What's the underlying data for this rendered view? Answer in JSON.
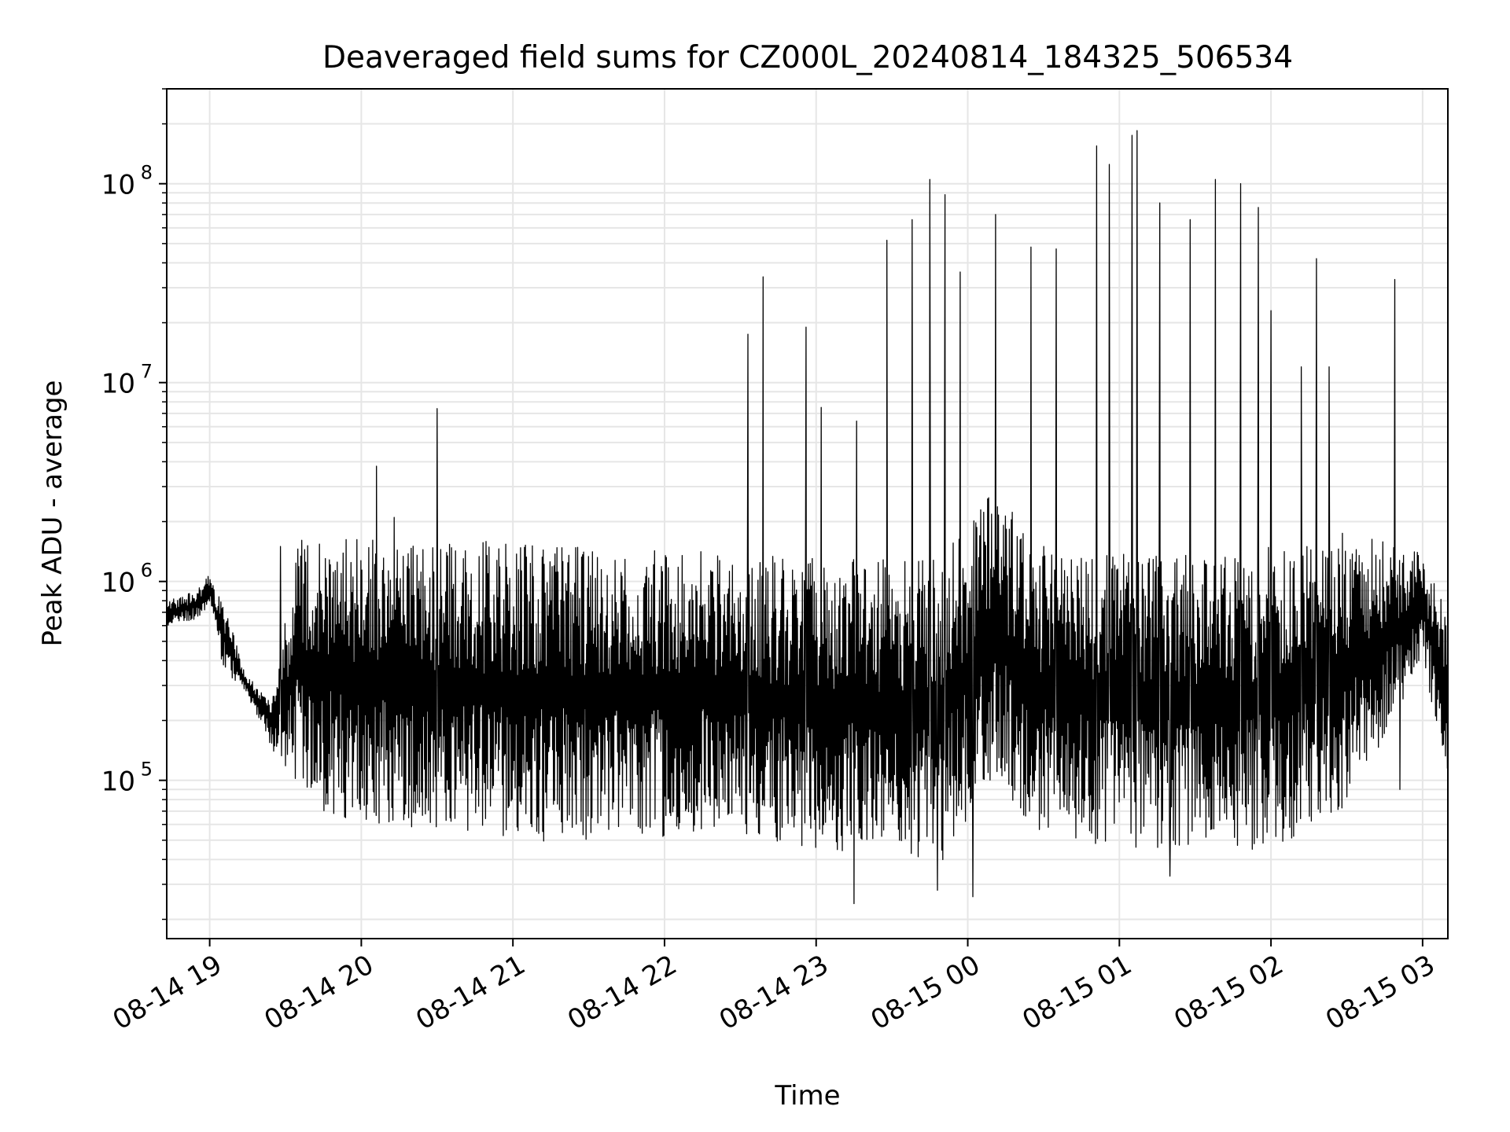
{
  "chart_data": {
    "type": "line",
    "title": "Deaveraged field sums for CZ000L_20240814_184325_506534",
    "xlabel": "Time",
    "ylabel": "Peak ADU - average",
    "x_tick_labels": [
      "08-14 19",
      "08-14 20",
      "08-14 21",
      "08-14 22",
      "08-14 23",
      "08-15 00",
      "08-15 01",
      "08-15 02",
      "08-15 03"
    ],
    "y_tick_labels": [
      {
        "base": "10",
        "exp": "5",
        "value": 100000
      },
      {
        "base": "10",
        "exp": "6",
        "value": 1000000
      },
      {
        "base": "10",
        "exp": "7",
        "value": 10000000
      },
      {
        "base": "10",
        "exp": "8",
        "value": 100000000
      }
    ],
    "xlim": [
      "2024-08-14 18:43",
      "2024-08-15 03:10"
    ],
    "ylim": [
      16000,
      300000000
    ],
    "y_scale": "log",
    "grid": true,
    "legend": "none",
    "line_color": "#000000",
    "grid_color": "#e6e6e6",
    "series": [
      {
        "x": [
          "2024-08-14 18:43",
          "2024-08-14 18:55",
          "2024-08-14 19:00",
          "2024-08-14 19:05",
          "2024-08-14 19:15",
          "2024-08-14 19:25",
          "2024-08-14 19:35",
          "2024-08-14 19:45",
          "2024-08-14 20:00",
          "2024-08-14 20:30",
          "2024-08-14 21:00",
          "2024-08-14 21:30",
          "2024-08-14 22:00",
          "2024-08-14 22:30",
          "2024-08-14 23:00",
          "2024-08-14 23:30",
          "2024-08-14 23:50",
          "2024-08-15 00:10",
          "2024-08-15 00:30",
          "2024-08-15 01:00",
          "2024-08-15 01:30",
          "2024-08-15 02:00",
          "2024-08-15 02:30",
          "2024-08-15 03:00",
          "2024-08-15 03:10"
        ],
        "min": [
          600000,
          650000,
          750000,
          380000,
          260000,
          140000,
          95000,
          70000,
          60000,
          55000,
          50000,
          48000,
          52000,
          50000,
          45000,
          40000,
          36000,
          100000,
          50000,
          45000,
          45000,
          45000,
          70000,
          400000,
          90000
        ],
        "max": [
          800000,
          900000,
          1100000,
          800000,
          330000,
          260000,
          1700000,
          1650000,
          1650000,
          1600000,
          1600000,
          1550000,
          1500000,
          1400000,
          1300000,
          1300000,
          1400000,
          3000000,
          1500000,
          1400000,
          1400000,
          1500000,
          1800000,
          1400000,
          700000
        ]
      }
    ],
    "spikes": [
      {
        "t": "2024-08-14 19:28",
        "v": 1500000
      },
      {
        "t": "2024-08-14 20:06",
        "v": 3800000
      },
      {
        "t": "2024-08-14 20:13",
        "v": 2100000
      },
      {
        "t": "2024-08-14 20:30",
        "v": 7400000
      },
      {
        "t": "2024-08-14 22:33",
        "v": 17500000
      },
      {
        "t": "2024-08-14 22:39",
        "v": 34000000
      },
      {
        "t": "2024-08-14 22:56",
        "v": 19000000
      },
      {
        "t": "2024-08-14 23:02",
        "v": 7500000
      },
      {
        "t": "2024-08-14 23:16",
        "v": 6400000
      },
      {
        "t": "2024-08-14 23:28",
        "v": 52000000
      },
      {
        "t": "2024-08-14 23:38",
        "v": 66000000
      },
      {
        "t": "2024-08-14 23:45",
        "v": 105000000
      },
      {
        "t": "2024-08-14 23:51",
        "v": 88000000
      },
      {
        "t": "2024-08-14 23:57",
        "v": 36000000
      },
      {
        "t": "2024-08-15 00:11",
        "v": 70000000
      },
      {
        "t": "2024-08-15 00:25",
        "v": 48000000
      },
      {
        "t": "2024-08-15 00:35",
        "v": 47000000
      },
      {
        "t": "2024-08-15 00:51",
        "v": 155000000
      },
      {
        "t": "2024-08-15 00:56",
        "v": 125000000
      },
      {
        "t": "2024-08-15 01:05",
        "v": 175000000
      },
      {
        "t": "2024-08-15 01:07",
        "v": 185000000
      },
      {
        "t": "2024-08-15 01:16",
        "v": 80000000
      },
      {
        "t": "2024-08-15 01:28",
        "v": 66000000
      },
      {
        "t": "2024-08-15 01:38",
        "v": 105000000
      },
      {
        "t": "2024-08-15 01:48",
        "v": 100000000
      },
      {
        "t": "2024-08-15 01:55",
        "v": 76000000
      },
      {
        "t": "2024-08-15 02:00",
        "v": 23000000
      },
      {
        "t": "2024-08-15 02:12",
        "v": 12000000
      },
      {
        "t": "2024-08-15 02:18",
        "v": 42000000
      },
      {
        "t": "2024-08-15 02:23",
        "v": 12000000
      },
      {
        "t": "2024-08-15 02:49",
        "v": 33000000
      }
    ],
    "dips": [
      {
        "t": "2024-08-14 23:15",
        "v": 24000
      },
      {
        "t": "2024-08-14 23:48",
        "v": 28000
      },
      {
        "t": "2024-08-15 00:02",
        "v": 26000
      },
      {
        "t": "2024-08-15 01:20",
        "v": 33000
      },
      {
        "t": "2024-08-15 02:51",
        "v": 90000
      }
    ]
  }
}
